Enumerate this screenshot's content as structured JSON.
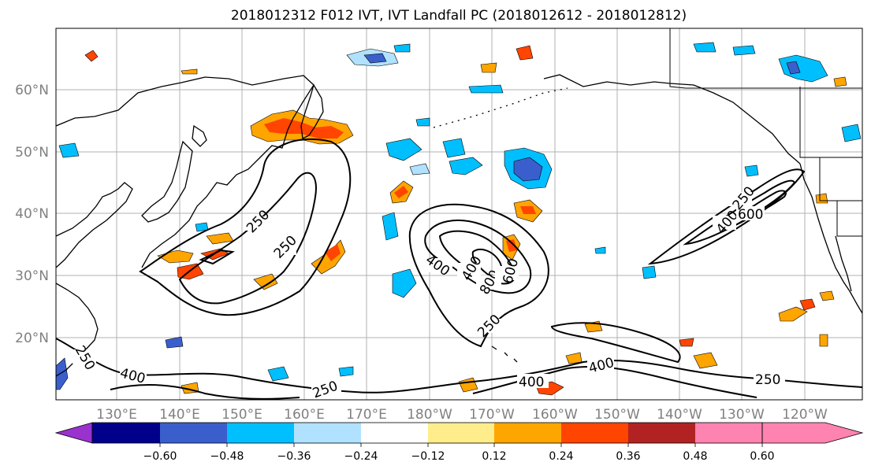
{
  "title": "2018012312 F012 IVT, IVT Landfall PC (2018012612 - 2018012812)",
  "lat_labels": [
    "60°N",
    "50°N",
    "40°N",
    "30°N",
    "20°N"
  ],
  "lon_labels": [
    "130°E",
    "140°E",
    "150°E",
    "160°E",
    "170°E",
    "180°W",
    "170°W",
    "160°W",
    "150°W",
    "140°W",
    "130°W",
    "120°W"
  ],
  "colorbar": {
    "colors": [
      "#9a32cd",
      "#00008b",
      "#3a5fcd",
      "#00bfff",
      "#b0e2ff",
      "#ffffff",
      "#ffec8b",
      "#ffa500",
      "#ff4500",
      "#b22222",
      "#ff83b0"
    ],
    "tick_labels": [
      "−0.60",
      "−0.48",
      "−0.36",
      "−0.24",
      "−0.12",
      "0.12",
      "0.24",
      "0.36",
      "0.48",
      "0.60"
    ]
  },
  "contour_labels": [
    "250",
    "250",
    "400",
    "400",
    "800",
    "600",
    "250",
    "400",
    "250",
    "400",
    "250",
    "400",
    "250",
    "400",
    "600",
    "250"
  ]
}
